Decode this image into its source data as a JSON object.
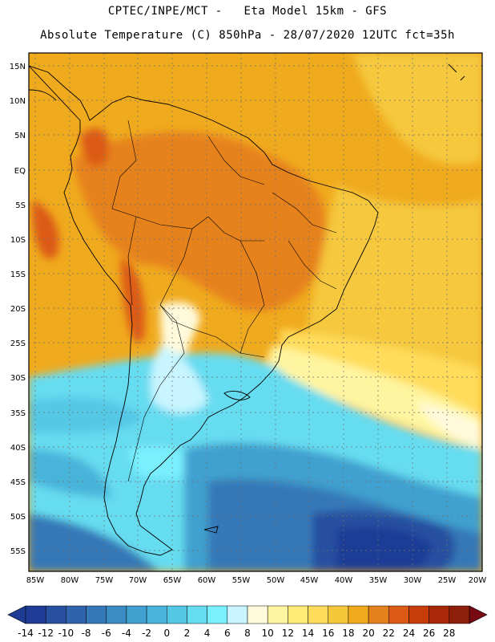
{
  "title_line1": "CPTEC/INPE/MCT -   Eta Model 15km - GFS",
  "title_line2": "Absolute Temperature (C) 850hPa - 28/07/2020 12UTC fct=35h",
  "lat_labels": [
    "15N",
    "10N",
    "5N",
    "EQ",
    "5S",
    "10S",
    "15S",
    "20S",
    "25S",
    "30S",
    "35S",
    "40S",
    "45S",
    "50S",
    "55S"
  ],
  "lon_labels": [
    "85W",
    "80W",
    "75W",
    "70W",
    "65W",
    "60W",
    "55W",
    "50W",
    "45W",
    "40W",
    "35W",
    "30W",
    "25W",
    "20W"
  ],
  "colorbar": {
    "labels": [
      "-14",
      "-12",
      "-10",
      "-8",
      "-6",
      "-4",
      "-2",
      "0",
      "2",
      "4",
      "6",
      "8",
      "10",
      "12",
      "14",
      "16",
      "18",
      "20",
      "22",
      "24",
      "26",
      "28"
    ],
    "colors": [
      "#1e3c96",
      "#2850a0",
      "#2f64ad",
      "#3478b8",
      "#3a8cc3",
      "#40a0cf",
      "#48b4da",
      "#55c8e6",
      "#66dcf0",
      "#7af0ff",
      "#c8f5ff",
      "#fffadc",
      "#fff5a0",
      "#ffeb78",
      "#ffdc5a",
      "#f5c83c",
      "#f0aa1e",
      "#e6821e",
      "#dc5a14",
      "#c83c0a",
      "#aa280a",
      "#8c1e0a"
    ],
    "under_color": "#1e3c96",
    "over_color": "#780a14"
  }
}
